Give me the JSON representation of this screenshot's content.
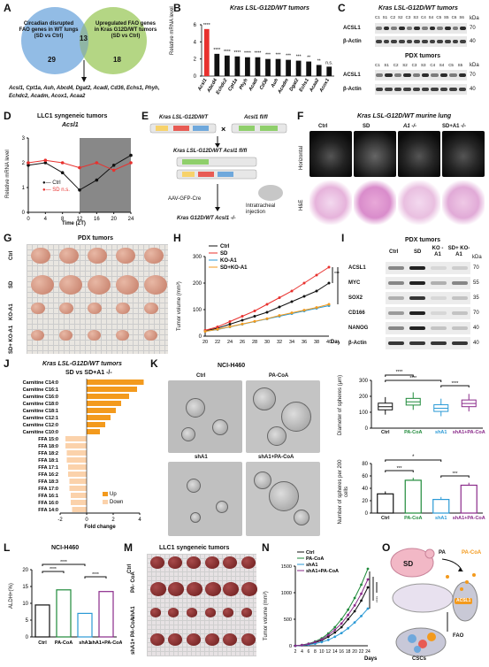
{
  "labels": {
    "A": "A",
    "B": "B",
    "C": "C",
    "D": "D",
    "E": "E",
    "F": "F",
    "G": "G",
    "H": "H",
    "I": "I",
    "J": "J",
    "K": "K",
    "L": "L",
    "M": "M",
    "N": "N",
    "O": "O"
  },
  "A": {
    "left": "Circadian disrupted FAO genes in WT lungs (SD vs Ctrl)",
    "right": "Upregulated FAO genes in Kras G12D/WT tumors (SD vs Ctrl)",
    "n_left": "29",
    "n_mid": "13",
    "n_right": "18",
    "genes": "Acsl1, Cpt1a, Auh, Abcd4, Dgat2, Acadl, Cd36, Echs1, Phyh, Echdc2, Acadm, Acox1, Acaa2"
  },
  "B": {
    "title": "Kras LSL-G12D/WT tumors",
    "ylabel": "Relative mRNA level",
    "ns": "n.s."
  },
  "C": {
    "title1": "Kras LSL-G12D/WT tumors",
    "title2": "PDX tumors",
    "lanes1": [
      "C1",
      "S1",
      "C2",
      "S2",
      "C3",
      "S3",
      "C4",
      "S4",
      "C5",
      "S5",
      "C6",
      "S6"
    ],
    "lanes2": [
      "C1",
      "S1",
      "C2",
      "S2",
      "C3",
      "S3",
      "C4",
      "S4",
      "C5",
      "S5"
    ],
    "row1": "ACSL1",
    "row2": "β-Actin",
    "kda": "kDa",
    "m70": "70",
    "m40": "40"
  },
  "D": {
    "title": "LLC1 syngeneic tumors",
    "gene": "Acsl1",
    "ylabel": "Relative mRNA level",
    "xlabel": "Time (ZT)",
    "legend_ctrl": "Ctrl",
    "legend_sd": "SD n.s."
  },
  "E": {
    "m1": "Kras LSL-G12D/WT",
    "m2": "Acsl1 fl/fl",
    "m3": "Kras LSL-G12D/WT Acsl1 fl/fl",
    "m4": "Kras G12D/WT Acsl1 -/-",
    "aav": "AAV-GFP-Cre",
    "inj": "Intratracheal injection"
  },
  "F": {
    "title": "Kras LSL-G12D/WT murine lung",
    "cols": [
      "Ctrl",
      "SD",
      "A1 -/-",
      "SD+A1 -/-"
    ],
    "row1": "Horizontal",
    "row2": "H&E"
  },
  "G": {
    "title": "PDX tumors",
    "rows": [
      "Ctrl",
      "SD",
      "KO-A1",
      "SD+ KO-A1"
    ]
  },
  "H": {
    "legend": [
      "Ctrl",
      "SD",
      "KO-A1",
      "SD+KO-A1"
    ],
    "ylabel": "Tumor volume (mm³)",
    "xunit": "Days"
  },
  "I": {
    "title": "PDX tumors",
    "cols": [
      "Ctrl",
      "SD",
      "KO -A1",
      "SD+ KO-A1"
    ],
    "rows": [
      "ACSL1",
      "MYC",
      "SOX2",
      "CD166",
      "NANOG",
      "β-Actin"
    ],
    "kda": [
      "70",
      "55",
      "35",
      "70",
      "40",
      "40"
    ],
    "unit": "kDa"
  },
  "J": {
    "title": "Kras LSL-G12D/WT tumors",
    "sub": "SD vs SD+A1 -/-",
    "xlabel": "Fold change",
    "up": "Up",
    "down": "Down"
  },
  "K": {
    "title": "NCI-H460",
    "img_labels": [
      "Ctrl",
      "PA-CoA",
      "shA1",
      "shA1+PA-CoA"
    ],
    "y1": "Diameter of spheres (μm)",
    "y2": "Number of spheres per 200 cells",
    "groups": [
      "Ctrl",
      "PA-CoA",
      "shA1",
      "shA1+ PA-CoA"
    ]
  },
  "L": {
    "title": "NCI-H460",
    "ylabel": "ALDH+(%)",
    "groups": [
      "Ctrl",
      "PA- CoA",
      "shA1",
      "shA1+ PA-CoA"
    ]
  },
  "M": {
    "title": "LLC1 syngeneic tumors",
    "rows": [
      "Ctrl",
      "PA- CoA",
      "shA1",
      "shA1+ PA-CoA"
    ]
  },
  "N": {
    "legend": [
      "Ctrl",
      "PA-CoA",
      "shA1",
      "shA1+PA-CoA"
    ],
    "ylabel": "Tumor volume (mm³)",
    "xunit": "Days"
  },
  "O": {
    "sd": "SD",
    "pa": "PA",
    "pacoa": "PA-CoA",
    "acsl1": "ACSL1",
    "fao": "FAO",
    "cscs": "CSCs"
  },
  "chart_data": [
    {
      "panel": "B",
      "type": "bar",
      "categories": [
        "Acsl1",
        "Abcd4",
        "Echdc2",
        "Cpt1a",
        "Phyh",
        "Acadl",
        "Cd36",
        "Auh",
        "Acadm",
        "Dgat2",
        "Echs1",
        "Acaa2",
        "Acox1"
      ],
      "values": [
        5.5,
        2.6,
        2.4,
        2.3,
        2.2,
        2.2,
        2.0,
        2.0,
        1.9,
        1.8,
        1.7,
        1.3,
        1.1
      ],
      "ylim": [
        0,
        6
      ],
      "sig": [
        "****",
        "****",
        "****",
        "****",
        "****",
        "****",
        "***",
        "***",
        "***",
        "***",
        "**",
        "**",
        "n.s."
      ]
    },
    {
      "panel": "D",
      "type": "line",
      "x": [
        0,
        4,
        8,
        12,
        16,
        20,
        24
      ],
      "series": [
        {
          "name": "Ctrl",
          "values": [
            1.9,
            2.0,
            1.6,
            0.9,
            1.3,
            1.9,
            2.3
          ]
        },
        {
          "name": "SD",
          "values": [
            2.0,
            2.1,
            2.0,
            1.8,
            2.0,
            1.7,
            2.0
          ]
        }
      ],
      "xlim": [
        0,
        24
      ],
      "ylim": [
        0,
        3
      ],
      "yticks": [
        0,
        1,
        2,
        3
      ],
      "xticks": [
        0,
        4,
        8,
        12,
        16,
        20,
        24
      ]
    },
    {
      "panel": "H",
      "type": "line",
      "x": [
        20,
        22,
        24,
        26,
        28,
        30,
        32,
        34,
        36,
        38,
        40
      ],
      "series": [
        {
          "name": "Ctrl",
          "values": [
            20,
            30,
            45,
            60,
            75,
            90,
            110,
            130,
            150,
            170,
            200
          ]
        },
        {
          "name": "SD",
          "values": [
            22,
            35,
            55,
            75,
            95,
            120,
            145,
            170,
            200,
            230,
            260
          ]
        },
        {
          "name": "KO-A1",
          "values": [
            18,
            25,
            35,
            45,
            55,
            65,
            75,
            85,
            95,
            105,
            115
          ]
        },
        {
          "name": "SD+KO-A1",
          "values": [
            18,
            26,
            36,
            46,
            56,
            66,
            78,
            88,
            98,
            108,
            120
          ]
        }
      ],
      "ylim": [
        0,
        300
      ],
      "yticks": [
        0,
        100,
        200,
        300
      ],
      "sig": [
        "***",
        "****"
      ]
    },
    {
      "panel": "J",
      "type": "bar",
      "categories": [
        "Carnitine C14:0",
        "Carnitine C16:1",
        "Carnitine C16:0",
        "Carnitine C18:0",
        "Carnitine C18:1",
        "Carnitine C12:1",
        "Carnitine C12:0",
        "Carnitine C10:0",
        "FFA 15:0",
        "FFA 18:0",
        "FFA 18:2",
        "FFA 18:1",
        "FFA 17:1",
        "FFA 16:2",
        "FFA 18:3",
        "FFA 17:0",
        "FFA 16:1",
        "FFA 16:0",
        "FFA 14:0"
      ],
      "values": [
        4.3,
        3.8,
        3.2,
        2.6,
        2.2,
        1.8,
        1.4,
        1.0,
        -1.6,
        -1.6,
        -1.5,
        -1.5,
        -1.4,
        -1.4,
        -1.3,
        -1.3,
        -1.2,
        -1.2,
        -1.1
      ],
      "xlim": [
        -2,
        4
      ],
      "xticks": [
        -2,
        0,
        2,
        4
      ]
    },
    {
      "panel": "K-diameter",
      "type": "box",
      "categories": [
        "Ctrl",
        "PA-CoA",
        "shA1",
        "shA1+PA-CoA"
      ],
      "median": [
        135,
        165,
        125,
        155
      ],
      "ylim": [
        0,
        300
      ],
      "yticks": [
        0,
        100,
        200,
        300
      ],
      "sig": [
        "****",
        "****",
        "****"
      ]
    },
    {
      "panel": "K-number",
      "type": "bar",
      "categories": [
        "Ctrl",
        "PA-CoA",
        "shA1",
        "shA1+PA-CoA"
      ],
      "values": [
        31,
        53,
        22,
        45
      ],
      "ylim": [
        0,
        80
      ],
      "yticks": [
        0,
        20,
        40,
        60,
        80
      ],
      "sig": [
        "*",
        "***",
        "***"
      ]
    },
    {
      "panel": "L",
      "type": "bar",
      "categories": [
        "Ctrl",
        "PA-CoA",
        "shA1",
        "shA1+PA-CoA"
      ],
      "values": [
        9.5,
        14,
        7,
        13.5
      ],
      "ylim": [
        0,
        20
      ],
      "yticks": [
        0,
        5,
        10,
        15,
        20
      ],
      "sig": [
        "****",
        "****",
        "****"
      ]
    },
    {
      "panel": "N",
      "type": "line",
      "x": [
        2,
        4,
        6,
        8,
        10,
        12,
        14,
        16,
        18,
        20,
        22,
        24
      ],
      "series": [
        {
          "name": "Ctrl",
          "values": [
            0,
            10,
            30,
            60,
            100,
            170,
            250,
            350,
            500,
            650,
            850,
            1100
          ]
        },
        {
          "name": "PA-CoA",
          "values": [
            0,
            15,
            40,
            80,
            140,
            230,
            350,
            500,
            680,
            900,
            1150,
            1450
          ]
        },
        {
          "name": "shA1",
          "values": [
            0,
            8,
            20,
            40,
            70,
            110,
            170,
            240,
            330,
            440,
            560,
            700
          ]
        },
        {
          "name": "shA1+PA-CoA",
          "values": [
            0,
            12,
            35,
            70,
            120,
            200,
            300,
            420,
            580,
            760,
            980,
            1250
          ]
        }
      ],
      "ylim": [
        0,
        1500
      ],
      "yticks": [
        0,
        500,
        1000,
        1500
      ],
      "sig": [
        "****",
        "****",
        "****"
      ]
    }
  ],
  "colors": {
    "red": "#e8312e",
    "black": "#111111",
    "blue": "#2b9ad6",
    "orange": "#f39a1d",
    "peach": "#fbd2ab",
    "green": "#1f8a3a",
    "purple": "#8a2a8a",
    "blue_venn": "#7fb0e0",
    "green_venn": "#a7cf6f"
  }
}
